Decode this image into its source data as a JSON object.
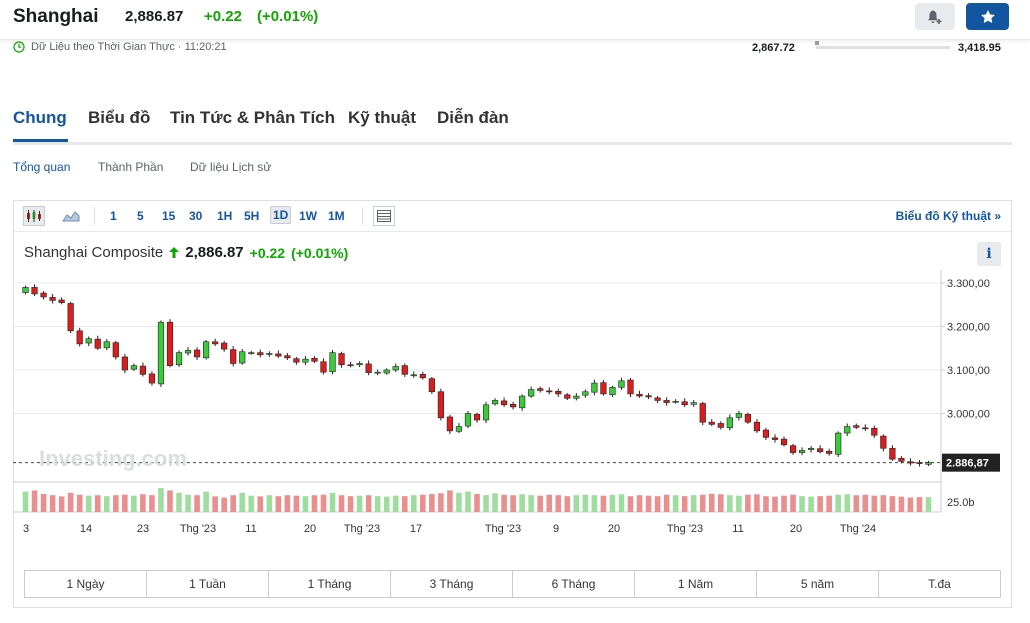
{
  "header": {
    "title": "Shanghai",
    "price": "2,886.87",
    "change": "+0.22",
    "change_pct": "(+0.01%)",
    "realtime": "Dữ Liệu theo Thời Gian Thực · 11:20:21",
    "range_low": "2,867.72",
    "range_high": "3,418.95",
    "range_position": 0.0
  },
  "tabs": [
    {
      "label": "Chung",
      "active": true
    },
    {
      "label": "Biểu đồ"
    },
    {
      "label": "Tin Tức & Phân Tích"
    },
    {
      "label": "Kỹ thuật"
    },
    {
      "label": "Diễn đàn"
    }
  ],
  "subtabs": [
    {
      "label": "Tổng quan",
      "active": true
    },
    {
      "label": "Thành Phần"
    },
    {
      "label": "Dữ liệu Lịch sử"
    }
  ],
  "toolbar": {
    "timeframes": [
      "1",
      "5",
      "15",
      "30",
      "1H",
      "5H",
      "1D",
      "1W",
      "1M"
    ],
    "active_timeframe": "1D",
    "tech_link": "Biểu đồ Kỹ thuật »"
  },
  "chart_title": {
    "name": "Shanghai Composite",
    "price": "2,886.87",
    "change": "+0.22",
    "change_pct": "(+0.01%)"
  },
  "ranges": [
    "1 Ngày",
    "1 Tuần",
    "1 Tháng",
    "3 Tháng",
    "6 Tháng",
    "1 Năm",
    "5 năm",
    "T.đa"
  ],
  "chart_data": {
    "type": "candlestick",
    "y_ticks": [
      "3.300,00",
      "3.200,00",
      "3.100,00",
      "3.000,00"
    ],
    "y_tick_values": [
      3300,
      3200,
      3100,
      3000
    ],
    "ylim": [
      2870,
      3330
    ],
    "last_price_label": "2.886,87",
    "last_price": 2886.87,
    "volume_label": "25.0b",
    "watermark": "Investing.com",
    "x_labels": [
      "3",
      "14",
      "23",
      "Thg '23",
      "11",
      "20",
      "Thg '23",
      "17",
      "Thg '23",
      "9",
      "20",
      "Thg '23",
      "11",
      "20",
      "Thg '24"
    ],
    "colors": {
      "up": "#3cc93c",
      "down": "#d91e1e",
      "up_vol": "#9fdd9f",
      "down_vol": "#e9908f"
    },
    "closes": [
      3290,
      3275,
      3268,
      3260,
      3255,
      3190,
      3160,
      3172,
      3150,
      3165,
      3130,
      3100,
      3110,
      3090,
      3070,
      3210,
      3110,
      3140,
      3145,
      3130,
      3165,
      3160,
      3148,
      3115,
      3142,
      3140,
      3135,
      3138,
      3132,
      3128,
      3118,
      3125,
      3120,
      3095,
      3140,
      3112,
      3110,
      3115,
      3094,
      3095,
      3100,
      3108,
      3090,
      3089,
      3082,
      3050,
      2990,
      2960,
      2970,
      3000,
      2985,
      3020,
      3030,
      3020,
      3015,
      3040,
      3055,
      3053,
      3050,
      3045,
      3035,
      3040,
      3050,
      3070,
      3045,
      3060,
      3075,
      3045,
      3040,
      3038,
      3030,
      3025,
      3028,
      3020,
      3025,
      2980,
      2975,
      2968,
      2990,
      3000,
      2980,
      2960,
      2945,
      2940,
      2928,
      2910,
      2915,
      2920,
      2912,
      2908,
      2955,
      2970,
      2968,
      2965,
      2950,
      2920,
      2895,
      2890,
      2886,
      2885,
      2887
    ],
    "volumes": [
      0.85,
      0.9,
      0.75,
      0.7,
      0.65,
      0.8,
      0.72,
      0.68,
      0.7,
      0.66,
      0.7,
      0.72,
      0.68,
      0.74,
      0.7,
      1.0,
      0.9,
      0.8,
      0.72,
      0.7,
      0.85,
      0.65,
      0.6,
      0.7,
      0.8,
      0.68,
      0.65,
      0.7,
      0.66,
      0.7,
      0.68,
      0.66,
      0.7,
      0.72,
      0.8,
      0.7,
      0.66,
      0.68,
      0.7,
      0.66,
      0.64,
      0.68,
      0.66,
      0.7,
      0.72,
      0.75,
      0.78,
      0.9,
      0.8,
      0.85,
      0.75,
      0.7,
      0.78,
      0.72,
      0.7,
      0.74,
      0.7,
      0.68,
      0.72,
      0.7,
      0.66,
      0.7,
      0.72,
      0.7,
      0.68,
      0.72,
      0.74,
      0.66,
      0.7,
      0.68,
      0.66,
      0.72,
      0.7,
      0.66,
      0.7,
      0.72,
      0.76,
      0.74,
      0.7,
      0.68,
      0.72,
      0.74,
      0.66,
      0.64,
      0.68,
      0.72,
      0.66,
      0.64,
      0.66,
      0.68,
      0.72,
      0.74,
      0.7,
      0.72,
      0.68,
      0.7,
      0.66,
      0.64,
      0.6,
      0.62,
      0.62
    ]
  }
}
